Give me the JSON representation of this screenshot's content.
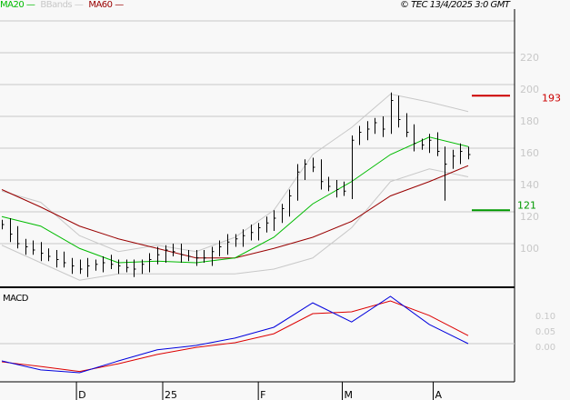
{
  "legend": {
    "ma20": "MA20",
    "bbands": "BBands",
    "ma50": "MA60",
    "copyright": "© TEC 13/4/2025 3:0 GMT"
  },
  "colors": {
    "ma20": "#00bb00",
    "bbands": "#c8c8c8",
    "ma50": "#990000",
    "bars": "#000000",
    "macd": "#0000dd",
    "signal": "#dd0000",
    "resistance": "#cc0000",
    "support": "#009900"
  },
  "chart_data": [
    {
      "type": "bar-ohlc",
      "title": "",
      "ylim": [
        85,
        230
      ],
      "yticks": [
        100,
        120,
        140,
        160,
        180,
        200,
        220
      ],
      "grid": true,
      "xticks": [
        {
          "label": "D",
          "index": 16
        },
        {
          "label": "25",
          "index": 34.5
        },
        {
          "label": "F",
          "index": 55
        },
        {
          "label": "M",
          "index": 73
        },
        {
          "label": "A",
          "index": 92.5
        }
      ],
      "n_days": 100,
      "close": [
        112,
        106,
        100,
        98,
        96,
        94,
        92,
        90,
        88,
        86,
        84,
        86,
        87,
        88,
        87,
        86,
        85,
        84,
        87,
        90,
        93,
        96,
        95,
        93,
        92,
        91,
        91,
        95,
        98,
        101,
        103,
        105,
        107,
        110,
        113,
        116,
        122,
        130,
        145,
        150,
        148,
        139,
        136,
        134,
        133,
        165,
        170,
        172,
        176,
        172,
        190,
        178,
        170,
        163,
        162,
        165,
        158,
        150,
        155,
        158,
        156
      ],
      "spike_low": {
        "index": 57,
        "value": 127
      },
      "ma20": [
        117,
        111,
        97,
        88,
        89,
        88,
        91,
        104,
        125,
        139,
        156,
        167,
        161
      ],
      "ma50": [
        134,
        123,
        111,
        103,
        97,
        91,
        91,
        97,
        104,
        114,
        130,
        139,
        149
      ],
      "bb_upper": [
        133,
        126,
        105,
        95,
        99,
        95,
        104,
        121,
        156,
        173,
        194,
        189,
        183
      ],
      "bb_lower": [
        99,
        88,
        77,
        81,
        81,
        81,
        81,
        84,
        91,
        110,
        139,
        147,
        142
      ],
      "levels": [
        {
          "label": "193",
          "value": 193,
          "kind": "resistance"
        },
        {
          "label": "121",
          "value": 121,
          "kind": "support"
        }
      ]
    },
    {
      "type": "line",
      "title": "MACD",
      "yticks": [
        "0.10",
        "0.05",
        "0.00"
      ],
      "macd": [
        -0.056,
        -0.085,
        -0.094,
        -0.056,
        -0.02,
        -0.006,
        0.018,
        0.053,
        0.132,
        0.07,
        0.153,
        0.062,
        0.0
      ],
      "signal": [
        -0.059,
        -0.074,
        -0.09,
        -0.065,
        -0.035,
        -0.012,
        0.003,
        0.032,
        0.097,
        0.103,
        0.138,
        0.091,
        0.026
      ]
    }
  ]
}
